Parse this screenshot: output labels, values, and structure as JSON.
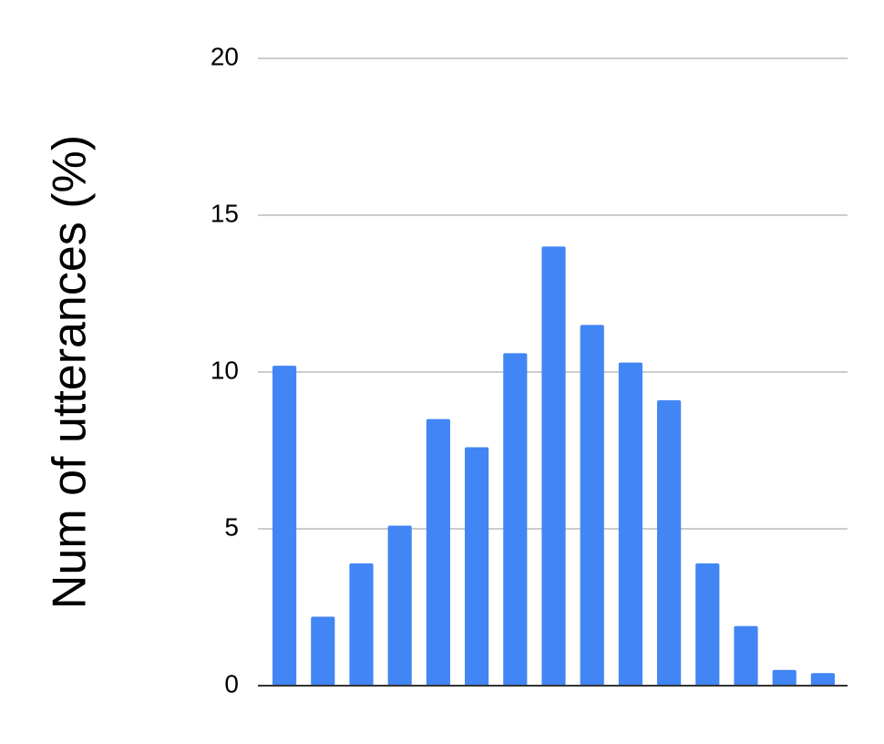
{
  "chart_data": {
    "type": "bar",
    "y_label": "Num of utterances (%)",
    "categories": [
      null,
      null,
      null,
      null,
      null,
      null,
      null,
      null,
      null,
      null,
      null,
      null,
      null,
      null,
      null
    ],
    "values": [
      10.2,
      2.2,
      3.9,
      5.1,
      8.5,
      7.6,
      10.6,
      14.0,
      11.5,
      10.3,
      9.1,
      3.9,
      1.9,
      0.5,
      0.4
    ],
    "color": "#4285f4",
    "ylim": [
      0,
      20
    ],
    "yticks": [
      0,
      5,
      10,
      15,
      20
    ],
    "grid": true
  }
}
